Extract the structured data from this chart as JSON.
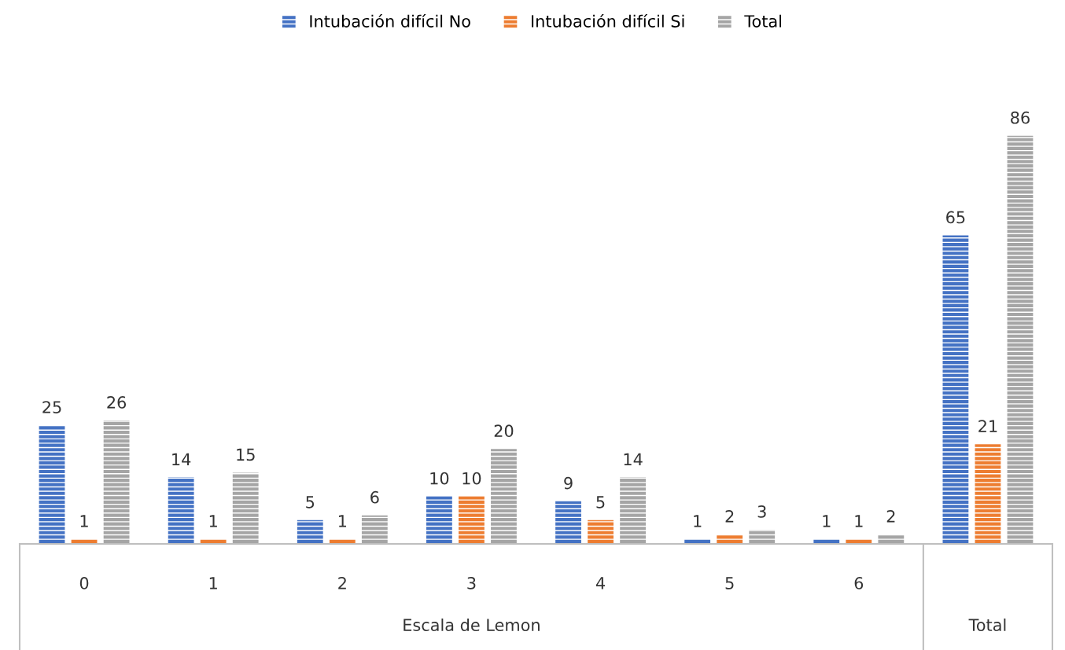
{
  "chart_data": {
    "type": "bar",
    "categories": [
      "0",
      "1",
      "2",
      "3",
      "4",
      "5",
      "6",
      null
    ],
    "series": [
      {
        "name": "Intubación difícil No",
        "color": "#4472c4",
        "values": [
          25,
          14,
          5,
          10,
          9,
          1,
          1,
          65
        ]
      },
      {
        "name": "Intubación difícil Si",
        "color": "#ed7d31",
        "values": [
          1,
          1,
          1,
          10,
          5,
          2,
          1,
          21
        ]
      },
      {
        "name": "Total",
        "color": "#a5a5a5",
        "values": [
          26,
          15,
          6,
          20,
          14,
          3,
          2,
          86
        ]
      }
    ],
    "data_labels": true,
    "legend": "top",
    "grid": false,
    "annotations": [
      "Escala de Lemon",
      "Total"
    ]
  }
}
